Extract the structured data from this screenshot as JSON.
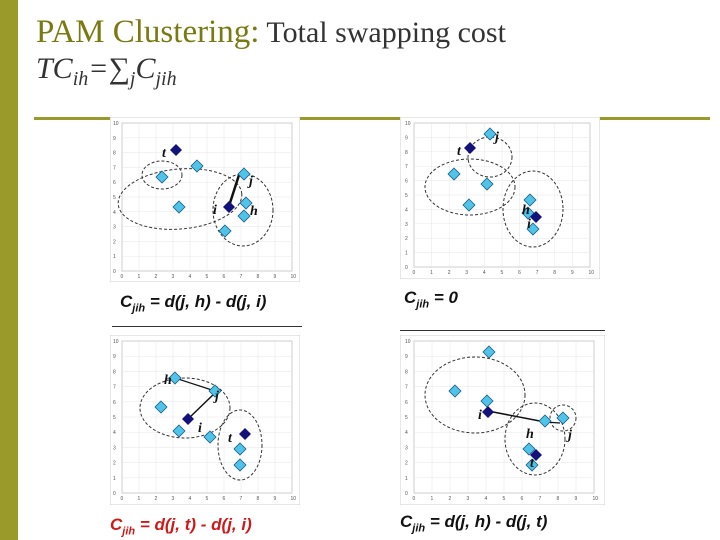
{
  "title": {
    "part1": "PAM Clustering:",
    "part2": " Total swapping cost",
    "line2_pre": "TC",
    "line2_sub1": "ih",
    "line2_mid": "=∑",
    "line2_sub2": "j",
    "line2_c": "C",
    "line2_sub3": "jih"
  },
  "panels": [
    {
      "labels": {
        "t": "t",
        "i": "i",
        "j": "j",
        "h": "h"
      },
      "formula": "Cjih = d(j, h) - d(j, i)",
      "formula_color": "#111111"
    },
    {
      "labels": {
        "t": "t",
        "i": "i",
        "j": "j",
        "h": "h"
      },
      "formula": "Cjih = 0",
      "formula_color": "#111111"
    },
    {
      "labels": {
        "t": "t",
        "i": "i",
        "j": "j",
        "h": "h"
      },
      "formula": "Cjih = d(j, t) - d(j, i)",
      "formula_color": "#d01818"
    },
    {
      "labels": {
        "t": "t",
        "i": "i",
        "j": "j",
        "h": "h"
      },
      "formula": "Cjih = d(j, h) - d(j, t)",
      "formula_color": "#111111"
    }
  ],
  "axis_ticks": {
    "x": [
      "0",
      "1",
      "2",
      "3",
      "4",
      "5",
      "6",
      "7",
      "8",
      "9",
      "10"
    ],
    "y": [
      "10",
      "9",
      "8",
      "7",
      "6",
      "5",
      "4",
      "3",
      "2",
      "1",
      "0"
    ]
  },
  "colors": {
    "accent": "#9a9a2a",
    "data_point": "#4fc3e8",
    "medoid": "#12127a",
    "red_formula": "#d01818"
  }
}
